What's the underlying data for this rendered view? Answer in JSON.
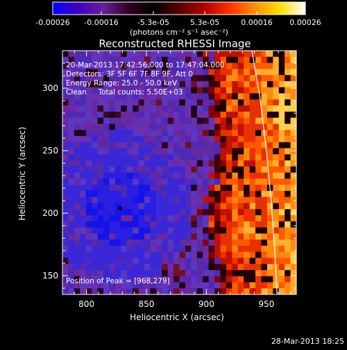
{
  "colorbar": {
    "tick_labels": [
      "-0.00026",
      "-0.00016",
      "-5.3e-05",
      "5.3e-05",
      "0.00016",
      "0.00026"
    ],
    "tick_values": [
      -0.00026,
      -0.00016,
      -5.3e-05,
      5.3e-05,
      0.00016,
      0.00026
    ],
    "range": [
      -0.00026,
      0.00026
    ],
    "units_label": "(photons cm⁻² s⁻¹ asec⁻²)",
    "colors": [
      "#0000ff",
      "#4000c0",
      "#6a1f9a",
      "#300020",
      "#000000",
      "#5a0000",
      "#b00000",
      "#ff3000",
      "#ff9000",
      "#ffe000",
      "#ffffff"
    ]
  },
  "chart_data": {
    "type": "heatmap",
    "title": "Reconstructed RHESSI Image",
    "xlabel": "Heliocentric X (arcsec)",
    "ylabel": "Heliocentric Y (arcsec)",
    "xlim": [
      780,
      975
    ],
    "ylim": [
      135,
      330
    ],
    "x_ticks": [
      800,
      850,
      900,
      950
    ],
    "y_ticks": [
      150,
      200,
      250,
      300
    ],
    "annotations": {
      "time": "20-Mar-2013 17:42:56.000 to 17:47:04.000",
      "detectors": "Detectors: 3F 5F 6F 7F 8F 9F, Att 0",
      "energy": "Energy Range: 25.0 - 50.0 keV",
      "clean": "Clean     Total counts: 5.50E+03",
      "peak": "Position of Peak = [968,279]"
    },
    "peak_position": [
      968,
      279
    ],
    "minimum_marker": [
      828,
      204
    ],
    "limb_curve": [
      [
        938,
        330
      ],
      [
        945,
        290
      ],
      [
        950,
        250
      ],
      [
        954,
        210
      ],
      [
        957,
        170
      ],
      [
        959,
        135
      ]
    ],
    "grid": false
  },
  "footer": {
    "timestamp": "28-Mar-2013 18:25"
  }
}
